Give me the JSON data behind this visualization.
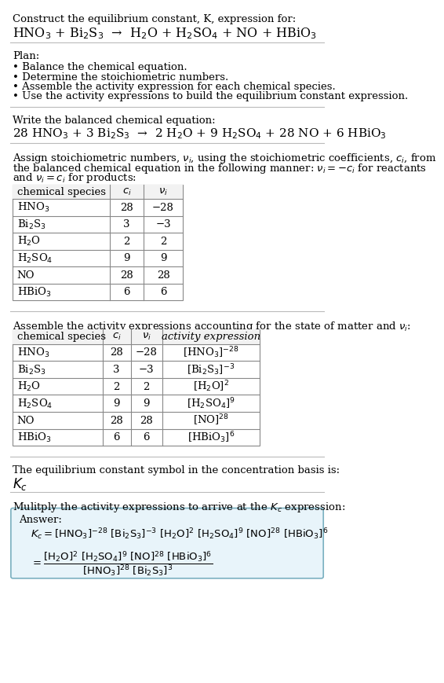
{
  "title_line1": "Construct the equilibrium constant, K, expression for:",
  "title_line2": "HNO$_3$ + Bi$_2$S$_3$  →  H$_2$O + H$_2$SO$_4$ + NO + HBiO$_3$",
  "plan_header": "Plan:",
  "plan_items": [
    "• Balance the chemical equation.",
    "• Determine the stoichiometric numbers.",
    "• Assemble the activity expression for each chemical species.",
    "• Use the activity expressions to build the equilibrium constant expression."
  ],
  "balanced_header": "Write the balanced chemical equation:",
  "balanced_eq": "28 HNO$_3$ + 3 Bi$_2$S$_3$  →  2 H$_2$O + 9 H$_2$SO$_4$ + 28 NO + 6 HBiO$_3$",
  "stoich_text": [
    "Assign stoichiometric numbers, $\\nu_i$, using the stoichiometric coefficients, $c_i$, from",
    "the balanced chemical equation in the following manner: $\\nu_i = -c_i$ for reactants",
    "and $\\nu_i = c_i$ for products:"
  ],
  "table1_headers": [
    "chemical species",
    "$c_i$",
    "$\\nu_i$"
  ],
  "table1_rows": [
    [
      "HNO$_3$",
      "28",
      "−28"
    ],
    [
      "Bi$_2$S$_3$",
      "3",
      "−3"
    ],
    [
      "H$_2$O",
      "2",
      "2"
    ],
    [
      "H$_2$SO$_4$",
      "9",
      "9"
    ],
    [
      "NO",
      "28",
      "28"
    ],
    [
      "HBiO$_3$",
      "6",
      "6"
    ]
  ],
  "activity_header": "Assemble the activity expressions accounting for the state of matter and $\\nu_i$:",
  "table2_headers": [
    "chemical species",
    "$c_i$",
    "$\\nu_i$",
    "activity expression"
  ],
  "table2_rows": [
    [
      "HNO$_3$",
      "28",
      "−28",
      "[HNO$_3$]$^{-28}$"
    ],
    [
      "Bi$_2$S$_3$",
      "3",
      "−3",
      "[Bi$_2$S$_3$]$^{-3}$"
    ],
    [
      "H$_2$O",
      "2",
      "2",
      "[H$_2$O]$^2$"
    ],
    [
      "H$_2$SO$_4$",
      "9",
      "9",
      "[H$_2$SO$_4$]$^9$"
    ],
    [
      "NO",
      "28",
      "28",
      "[NO]$^{28}$"
    ],
    [
      "HBiO$_3$",
      "6",
      "6",
      "[HBiO$_3$]$^6$"
    ]
  ],
  "kc_header": "The equilibrium constant symbol in the concentration basis is:",
  "kc_symbol": "$K_c$",
  "multiply_header": "Mulitply the activity expressions to arrive at the $K_c$ expression:",
  "answer_label": "Answer:",
  "bg_color": "#ffffff",
  "answer_box_color": "#e8f4fa",
  "answer_box_border": "#7ab0c0",
  "separator_color": "#c8c8c8"
}
